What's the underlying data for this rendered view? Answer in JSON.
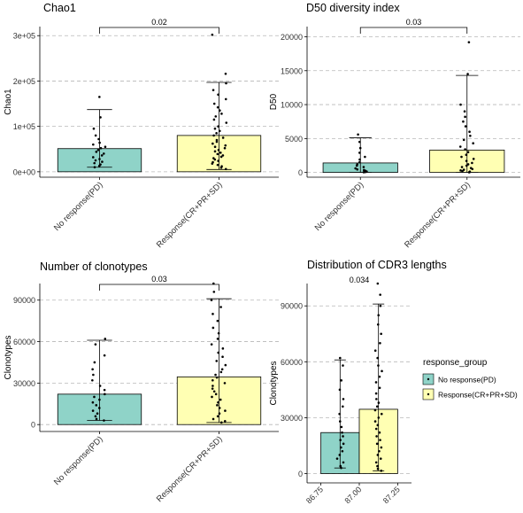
{
  "colors": {
    "group_pd": "#8fd3c8",
    "group_resp": "#ffffb3",
    "grid": "#b8b8b8",
    "axis": "#000000",
    "point": "#000000"
  },
  "chart_data": [
    {
      "id": "chao1",
      "type": "bar",
      "title": "Chao1",
      "ylabel": "Chao1",
      "xlabel": "",
      "categories": [
        "No response(PD)",
        "Response(CR+PR+SD)"
      ],
      "values": [
        51000,
        80000
      ],
      "error_lower": [
        10000,
        5000
      ],
      "error_upper": [
        137000,
        197000
      ],
      "ylim": [
        -12000,
        320000
      ],
      "yticks": [
        0,
        100000,
        200000,
        300000
      ],
      "ytick_labels": [
        "0e+00",
        "1e+05",
        "2e+05",
        "3e+05"
      ],
      "grid": "horizontal dashed",
      "bracket_label": "0.02",
      "points": [
        [
          165000,
          120000,
          95000,
          80000,
          72000,
          64000,
          60000,
          55000,
          52000,
          48000,
          44000,
          40000,
          36000,
          32000,
          28000,
          25000,
          22000,
          19000,
          16000,
          13000,
          10000
        ],
        [
          302000,
          216000,
          195000,
          180000,
          170000,
          160000,
          150000,
          142000,
          135000,
          128000,
          122000,
          115000,
          108000,
          100000,
          95000,
          90000,
          85000,
          80000,
          75000,
          70000,
          66000,
          62000,
          58000,
          55000,
          52000,
          48000,
          45000,
          42000,
          39000,
          36000,
          33000,
          30000,
          27000,
          24000,
          21000,
          18000,
          15000,
          12000,
          9000,
          6000
        ]
      ]
    },
    {
      "id": "d50",
      "type": "bar",
      "title": "D50 diversity index",
      "ylabel": "D50",
      "xlabel": "",
      "categories": [
        "No response(PD)",
        "Response(CR+PR+SD)"
      ],
      "values": [
        1400,
        3300
      ],
      "error_lower": [
        0,
        0
      ],
      "error_upper": [
        5100,
        14300
      ],
      "ylim": [
        -700,
        21500
      ],
      "yticks": [
        0,
        5000,
        10000,
        15000,
        20000
      ],
      "ytick_labels": [
        "0",
        "5000",
        "10000",
        "15000",
        "20000"
      ],
      "grid": "horizontal dashed",
      "bracket_label": "0.03",
      "points": [
        [
          5600,
          4500,
          3600,
          2900,
          2300,
          1900,
          1500,
          1200,
          1000,
          800,
          600,
          450,
          350,
          250,
          150,
          100,
          60,
          30
        ],
        [
          19200,
          14500,
          10000,
          9000,
          8200,
          7500,
          6800,
          6000,
          5400,
          4800,
          4300,
          3800,
          3400,
          3000,
          2600,
          2300,
          2000,
          1700,
          1400,
          1200,
          1000,
          800,
          650,
          500,
          400,
          300,
          200,
          120,
          60,
          20
        ]
      ]
    },
    {
      "id": "clonotypes",
      "type": "bar",
      "title": "Number of clonotypes",
      "ylabel": "Clonotypes",
      "xlabel": "",
      "categories": [
        "No response(PD)",
        "Response(CR+PR+SD)"
      ],
      "values": [
        22000,
        34500
      ],
      "error_lower": [
        3000,
        1500
      ],
      "error_upper": [
        61000,
        91000
      ],
      "ylim": [
        -5000,
        102000
      ],
      "yticks": [
        0,
        30000,
        60000,
        90000
      ],
      "ytick_labels": [
        "0",
        "30000",
        "60000",
        "90000"
      ],
      "grid": "horizontal dashed",
      "bracket_label": "0.03",
      "points": [
        [
          62000,
          58000,
          50000,
          45000,
          40000,
          36000,
          32000,
          28000,
          25000,
          22000,
          20000,
          18000,
          16000,
          14000,
          12000,
          10000,
          8000,
          6000,
          4000,
          3000
        ],
        [
          102000,
          96000,
          90000,
          85000,
          80000,
          75000,
          70000,
          66000,
          62000,
          58000,
          55000,
          52000,
          49000,
          46000,
          43000,
          40000,
          38000,
          36000,
          34000,
          32000,
          30000,
          28000,
          26000,
          24000,
          22000,
          20000,
          18000,
          16000,
          14000,
          12000,
          10000,
          8000,
          6000,
          4000,
          2500,
          1500
        ]
      ]
    },
    {
      "id": "cdr3",
      "type": "bar",
      "title": "Distribution of CDR3 lengths",
      "ylabel": "Clonotypes",
      "xlabel": "",
      "categories": [
        "No response(PD)",
        "Response(CR+PR+SD)"
      ],
      "values": [
        22000,
        34500
      ],
      "error_lower": [
        3000,
        1500
      ],
      "error_upper": [
        61000,
        91000
      ],
      "xlim": [
        86.66,
        87.34
      ],
      "bar_centers": [
        86.875,
        87.125
      ],
      "bar_width": 0.25,
      "xticks": [
        86.75,
        87.0,
        87.25
      ],
      "xtick_labels": [
        "86.75",
        "87.00",
        "87.25"
      ],
      "ylim": [
        -5000,
        102000
      ],
      "yticks": [
        0,
        30000,
        60000,
        90000
      ],
      "ytick_labels": [
        "0",
        "30000",
        "60000",
        "90000"
      ],
      "grid": "horizontal dashed",
      "pvalue_label": "0.034",
      "legend": {
        "title": "response_group",
        "position": "right",
        "entries": [
          "No response(PD)",
          "Response(CR+PR+SD)"
        ]
      },
      "points": [
        [
          62000,
          58000,
          50000,
          45000,
          40000,
          36000,
          32000,
          28000,
          25000,
          22000,
          20000,
          18000,
          16000,
          14000,
          12000,
          10000,
          8000,
          6000,
          4000,
          3000
        ],
        [
          102000,
          96000,
          90000,
          85000,
          80000,
          75000,
          70000,
          66000,
          62000,
          58000,
          55000,
          52000,
          49000,
          46000,
          43000,
          40000,
          38000,
          36000,
          34000,
          32000,
          30000,
          28000,
          26000,
          24000,
          22000,
          20000,
          18000,
          16000,
          14000,
          12000,
          10000,
          8000,
          6000,
          4000,
          2500,
          1500
        ]
      ]
    }
  ]
}
